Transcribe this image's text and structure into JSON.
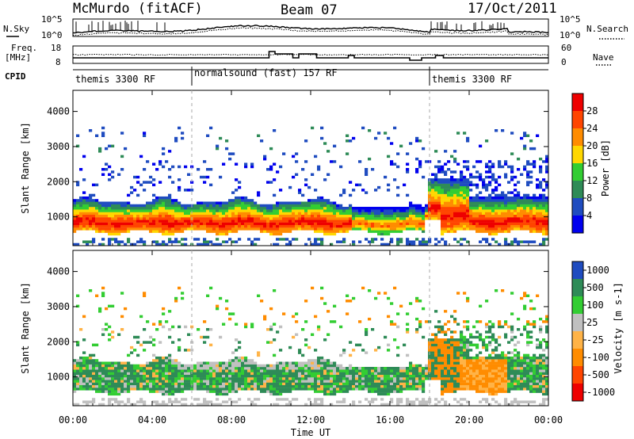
{
  "header": {
    "station": "McMurdo (fitACF)",
    "beam": "Beam 07",
    "date": "17/Oct/2011"
  },
  "noise_panel": {
    "left_label": "N.Sky",
    "left_ticks": [
      "10^5",
      "10^0"
    ],
    "right_label": "N.Search",
    "right_ticks": [
      "10^5",
      "10^0"
    ]
  },
  "freq_panel": {
    "left_label_1": "Freq.",
    "left_label_2": "[MHz]",
    "left_ticks": [
      "18",
      "8"
    ],
    "right_label": "Nave",
    "right_ticks": [
      "60",
      "0"
    ]
  },
  "cpid_panel": {
    "label": "CPID",
    "segments": [
      {
        "name": "themis 3300 RF",
        "start_hour": 0
      },
      {
        "name": "normalsound (fast) 157 RF",
        "start_hour": 6
      },
      {
        "name": "themis 3300 RF",
        "start_hour": 18
      }
    ]
  },
  "colors": {
    "power": [
      "#0000ee",
      "#1f4cc0",
      "#2e8b57",
      "#32cd32",
      "#ffd700",
      "#ff8c00",
      "#ff4500",
      "#ee0000"
    ],
    "velocity": [
      "#ee0000",
      "#ff4500",
      "#ff8c00",
      "#ffb347",
      "#c0c0c0",
      "#32cd32",
      "#2e8b57",
      "#1f4cc0"
    ]
  },
  "chart_data": [
    {
      "type": "heatmap",
      "panel": "power",
      "ylabel": "Slant Range [km]",
      "yticks": [
        1000,
        2000,
        3000,
        4000
      ],
      "ylim": [
        180,
        4600
      ],
      "xlim": [
        0,
        24
      ],
      "colorbar": {
        "label": "Power [dB]",
        "ticks": [
          4,
          8,
          12,
          16,
          20,
          24,
          28
        ],
        "range": [
          0,
          32
        ]
      }
    },
    {
      "type": "heatmap",
      "panel": "velocity",
      "ylabel": "Slant Range [km]",
      "yticks": [
        1000,
        2000,
        3000,
        4000
      ],
      "ylim": [
        180,
        4600
      ],
      "xlim": [
        0,
        24
      ],
      "colorbar": {
        "label": "Velocity [m s-1]",
        "ticks": [
          "1000",
          "500",
          "100",
          "25",
          "-25",
          "-100",
          "-500",
          "-1000"
        ]
      }
    }
  ],
  "x_axis": {
    "label": "Time UT",
    "ticks": [
      "00:00",
      "04:00",
      "08:00",
      "12:00",
      "16:00",
      "20:00",
      "00:00"
    ],
    "hours": [
      0,
      4,
      8,
      12,
      16,
      20,
      24
    ]
  }
}
